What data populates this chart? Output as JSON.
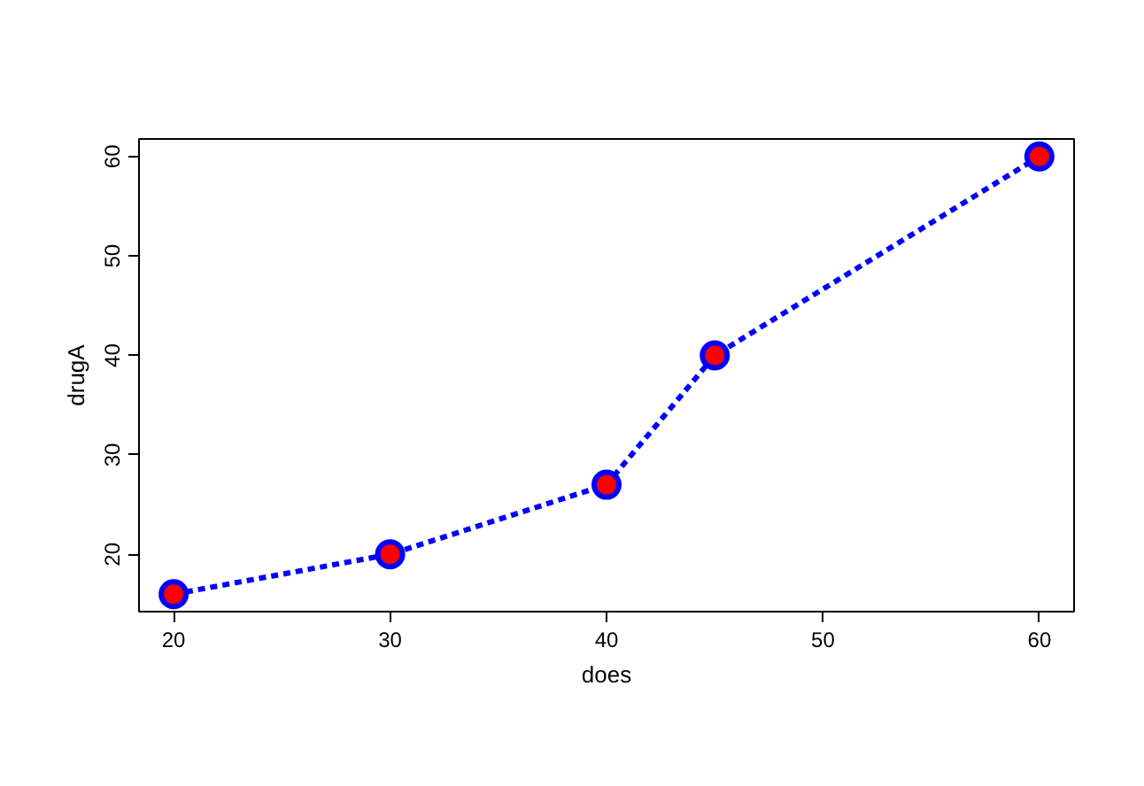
{
  "chart_data": {
    "type": "line",
    "xlabel": "does",
    "ylabel": "drugA",
    "x": [
      20,
      30,
      40,
      45,
      60
    ],
    "series": [
      {
        "color": "#0000ff",
        "colors": [
          "#ff0000",
          "#ff0000",
          "#ff0000",
          "#ff0000",
          "#ff0000"
        ],
        "values": [
          16,
          20,
          27,
          40,
          60
        ]
      }
    ],
    "xlim": [
      18.4,
      61.6
    ],
    "ylim": [
      14.24,
      61.76
    ],
    "xticks": [
      20,
      30,
      40,
      50,
      60
    ],
    "yticks": [
      20,
      30,
      40,
      50,
      60
    ],
    "marker": "circle",
    "line_style": "dashed",
    "grid": false
  }
}
